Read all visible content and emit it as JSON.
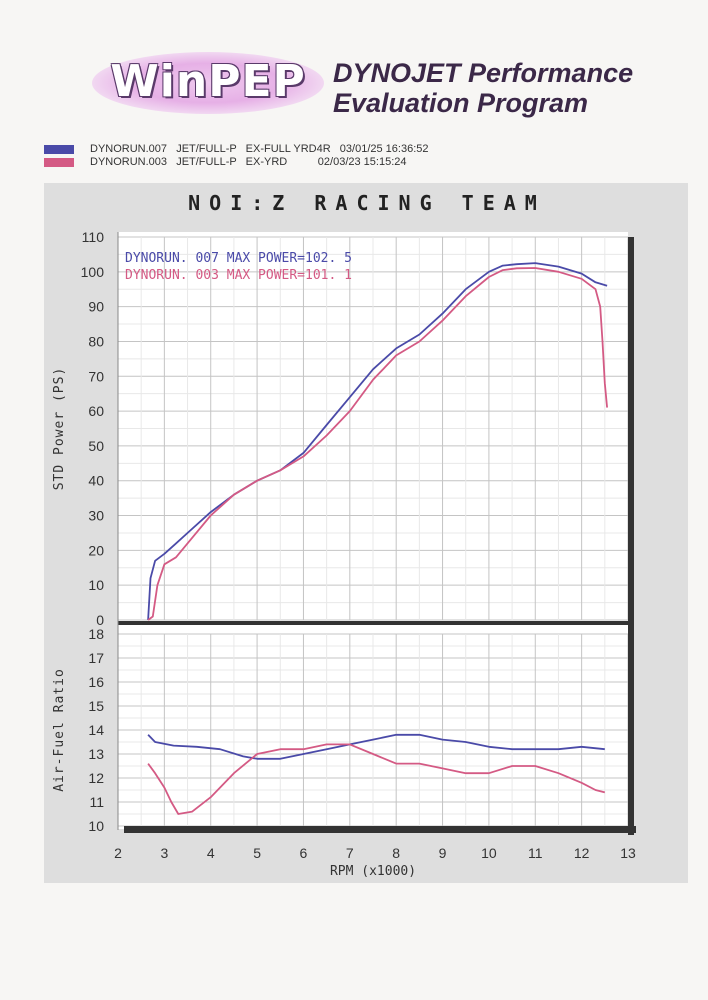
{
  "header": {
    "logo_text": "WinPEP",
    "title_line1": "DYNOJET Performance",
    "title_line2": "Evaluation Program"
  },
  "runs": [
    {
      "text": "DYNORUN.007   JET/FULL-P   EX-FULL YRD4R   03/01/25 16:36:52",
      "color": "#4a4aa8"
    },
    {
      "text": "DYNORUN.003   JET/FULL-P   EX-YRD          02/03/23 15:15:24",
      "color": "#d45a84"
    }
  ],
  "chart_title": "NOI:Z RACING TEAM",
  "chart_data": [
    {
      "type": "line",
      "ylabel": "STD Power (PS)",
      "xlim": [
        2,
        13
      ],
      "ylim": [
        0,
        110
      ],
      "yticks": [
        0,
        10,
        20,
        30,
        40,
        50,
        60,
        70,
        80,
        90,
        100,
        110
      ],
      "annotations": [
        "DYNORUN. 007   MAX POWER=102. 5",
        "DYNORUN. 003   MAX POWER=101. 1"
      ],
      "grid": true,
      "series": [
        {
          "name": "DYNORUN. 007",
          "color": "#4a4aa8",
          "x": [
            2.65,
            2.7,
            2.8,
            3.0,
            3.25,
            3.5,
            4.0,
            4.5,
            5.0,
            5.5,
            6.0,
            6.5,
            7.0,
            7.5,
            8.0,
            8.5,
            9.0,
            9.5,
            10.0,
            10.3,
            10.6,
            11.0,
            11.5,
            12.0,
            12.3,
            12.55
          ],
          "y": [
            0,
            12,
            17,
            19,
            22,
            25,
            31,
            36,
            40,
            43,
            48,
            56,
            64,
            72,
            78,
            82,
            88,
            95,
            100,
            101.8,
            102.2,
            102.5,
            101.5,
            99.5,
            97,
            96
          ]
        },
        {
          "name": "DYNORUN. 003",
          "color": "#d45a84",
          "x": [
            2.65,
            2.75,
            2.85,
            3.0,
            3.25,
            3.5,
            4.0,
            4.5,
            5.0,
            5.5,
            6.0,
            6.5,
            7.0,
            7.5,
            8.0,
            8.5,
            9.0,
            9.5,
            10.0,
            10.3,
            10.6,
            11.0,
            11.5,
            12.0,
            12.3,
            12.4,
            12.45,
            12.5,
            12.55
          ],
          "y": [
            0,
            1,
            10,
            16,
            18,
            22,
            30,
            36,
            40,
            43,
            47,
            53,
            60,
            69,
            76,
            80,
            86,
            93,
            98.5,
            100.5,
            101,
            101.1,
            100,
            98,
            95,
            90,
            80,
            68,
            61
          ]
        }
      ]
    },
    {
      "type": "line",
      "ylabel": "Air-Fuel Ratio",
      "xlabel": "RPM (x1000)",
      "xlim": [
        2,
        13
      ],
      "ylim": [
        10,
        18
      ],
      "xticks": [
        2,
        3,
        4,
        5,
        6,
        7,
        8,
        9,
        10,
        11,
        12,
        13
      ],
      "yticks": [
        10,
        11,
        12,
        13,
        14,
        15,
        16,
        17,
        18
      ],
      "grid": true,
      "series": [
        {
          "name": "DYNORUN. 007",
          "color": "#4a4aa8",
          "x": [
            2.65,
            2.8,
            3.2,
            3.7,
            4.2,
            4.7,
            5.0,
            5.5,
            6.0,
            6.5,
            7.0,
            7.5,
            8.0,
            8.5,
            9.0,
            9.5,
            10.0,
            10.5,
            11.0,
            11.5,
            12.0,
            12.5
          ],
          "y": [
            13.8,
            13.5,
            13.35,
            13.3,
            13.2,
            12.9,
            12.8,
            12.8,
            13.0,
            13.2,
            13.4,
            13.6,
            13.8,
            13.8,
            13.6,
            13.5,
            13.3,
            13.2,
            13.2,
            13.2,
            13.3,
            13.2
          ]
        },
        {
          "name": "DYNORUN. 003",
          "color": "#d45a84",
          "x": [
            2.65,
            2.8,
            3.0,
            3.15,
            3.3,
            3.6,
            4.0,
            4.5,
            5.0,
            5.5,
            6.0,
            6.5,
            7.0,
            7.5,
            8.0,
            8.5,
            9.0,
            9.5,
            10.0,
            10.5,
            11.0,
            11.5,
            12.0,
            12.3,
            12.5
          ],
          "y": [
            12.6,
            12.2,
            11.6,
            11.0,
            10.5,
            10.6,
            11.2,
            12.2,
            13.0,
            13.2,
            13.2,
            13.4,
            13.4,
            13.0,
            12.6,
            12.6,
            12.4,
            12.2,
            12.2,
            12.5,
            12.5,
            12.2,
            11.8,
            11.5,
            11.4
          ]
        }
      ]
    }
  ]
}
